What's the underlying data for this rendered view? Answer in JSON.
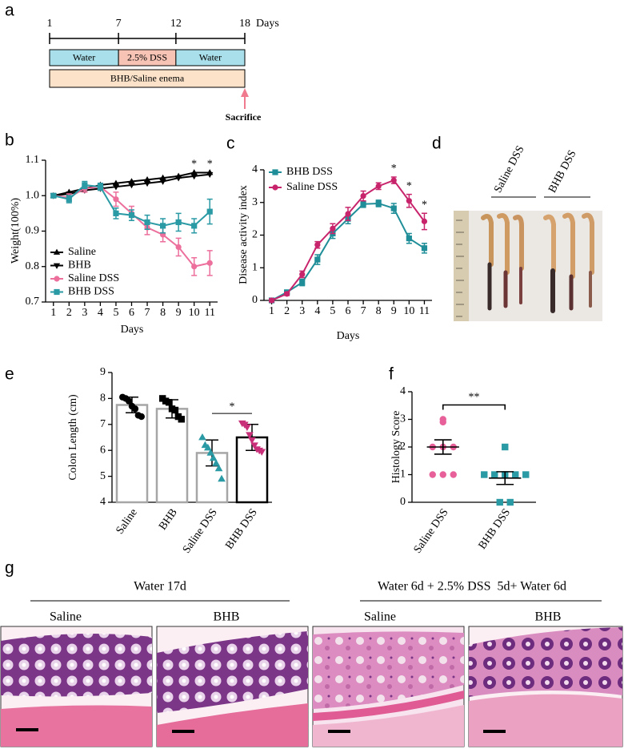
{
  "panel_labels": [
    "a",
    "b",
    "c",
    "d",
    "e",
    "f",
    "g"
  ],
  "timeline": {
    "days": [
      1,
      7,
      12,
      18
    ],
    "unit": "Days",
    "phases": [
      {
        "label": "Water",
        "from": 1,
        "to": 7,
        "color": "#a9dfea"
      },
      {
        "label": "2.5% DSS",
        "from": 7,
        "to": 12,
        "color": "#f6c3b5"
      },
      {
        "label": "Water",
        "from": 12,
        "to": 18,
        "color": "#a9dfea"
      }
    ],
    "treatment": {
      "label": "BHB/Saline enema",
      "color": "#fbe2c9"
    },
    "endpoint": {
      "label": "Sacrifice",
      "color": "#f07b8f"
    }
  },
  "chart_data": [
    {
      "type": "line",
      "ylabel": "Weight(100%)",
      "xlabel": "Days",
      "x": [
        1,
        2,
        3,
        4,
        5,
        6,
        7,
        8,
        9,
        10,
        11
      ],
      "xlim": [
        0.5,
        11.5
      ],
      "xticks": [
        1,
        2,
        3,
        4,
        5,
        6,
        7,
        8,
        9,
        10,
        11
      ],
      "ylim": [
        0.7,
        1.1
      ],
      "yticks": [
        0.7,
        0.8,
        0.9,
        {
          "value": 1,
          "label": "1.0"
        },
        1.1
      ],
      "legend": "lower left",
      "series": [
        {
          "name": "Saline",
          "color": "#000000",
          "marker": "triangle-up",
          "values": [
            1.0,
            1.01,
            1.02,
            1.03,
            1.035,
            1.04,
            1.045,
            1.05,
            1.055,
            1.065,
            1.065
          ]
        },
        {
          "name": "BHB",
          "color": "#000000",
          "marker": "triangle-down",
          "values": [
            1.0,
            1.005,
            1.015,
            1.02,
            1.025,
            1.03,
            1.035,
            1.04,
            1.05,
            1.055,
            1.06
          ]
        },
        {
          "name": "Saline DSS",
          "color": "#ec6f9c",
          "marker": "circle",
          "values": [
            1.0,
            0.995,
            1.02,
            1.025,
            0.99,
            0.95,
            0.91,
            0.89,
            0.855,
            0.8,
            0.81
          ],
          "errors": [
            0.005,
            0.01,
            0.01,
            0.01,
            0.02,
            0.02,
            0.02,
            0.02,
            0.025,
            0.025,
            0.035
          ]
        },
        {
          "name": "BHB DSS",
          "color": "#2a9aa5",
          "marker": "square",
          "values": [
            1.0,
            0.99,
            1.03,
            1.025,
            0.95,
            0.945,
            0.925,
            0.915,
            0.925,
            0.915,
            0.955
          ],
          "errors": [
            0.005,
            0.01,
            0.01,
            0.01,
            0.015,
            0.015,
            0.02,
            0.02,
            0.025,
            0.02,
            0.035
          ]
        }
      ],
      "significance": [
        {
          "x": 10,
          "text": "*"
        },
        {
          "x": 11,
          "text": "*"
        }
      ]
    },
    {
      "type": "line",
      "ylabel": "Disease activity index",
      "xlabel": "Days",
      "x": [
        1,
        2,
        3,
        4,
        5,
        6,
        7,
        8,
        9,
        10,
        11
      ],
      "xlim": [
        0.5,
        11.5
      ],
      "xticks": [
        1,
        2,
        3,
        4,
        5,
        6,
        7,
        8,
        9,
        10,
        11
      ],
      "ylim": [
        0,
        4
      ],
      "yticks": [
        0,
        1,
        2,
        3,
        4
      ],
      "legend": "upper left",
      "series": [
        {
          "name": "BHB DSS",
          "color": "#1f8e98",
          "marker": "square",
          "values": [
            0,
            0.25,
            0.55,
            1.25,
            2.05,
            2.5,
            2.95,
            2.97,
            2.82,
            1.9,
            1.6
          ],
          "errors": [
            0.05,
            0.05,
            0.1,
            0.15,
            0.15,
            0.15,
            0.1,
            0.1,
            0.15,
            0.15,
            0.15
          ]
        },
        {
          "name": "Saline DSS",
          "color": "#c8246c",
          "marker": "circle",
          "values": [
            0,
            0.2,
            0.8,
            1.7,
            2.2,
            2.65,
            3.2,
            3.5,
            3.68,
            3.05,
            2.42
          ],
          "errors": [
            0.05,
            0.05,
            0.1,
            0.1,
            0.15,
            0.2,
            0.15,
            0.1,
            0.1,
            0.2,
            0.25
          ]
        }
      ],
      "significance": [
        {
          "x": 9,
          "text": "*"
        },
        {
          "x": 10,
          "text": "*"
        },
        {
          "x": 11,
          "text": "*"
        }
      ]
    },
    {
      "type": "bar",
      "ylabel": "Colon Length (cm)",
      "categories": [
        "Saline",
        "BHB",
        "Saline DSS",
        "BHB DSS"
      ],
      "values": [
        7.75,
        7.6,
        5.9,
        6.5
      ],
      "errors": [
        0.3,
        0.35,
        0.5,
        0.5
      ],
      "points": [
        [
          8.05,
          8.0,
          7.9,
          7.7,
          7.6,
          7.35,
          7.3
        ],
        [
          8.0,
          7.9,
          7.85,
          7.6,
          7.55,
          7.3,
          7.2
        ],
        [
          6.5,
          6.2,
          6.1,
          5.9,
          5.7,
          5.5,
          5.3,
          4.9
        ],
        [
          7.05,
          7.0,
          6.9,
          6.6,
          6.4,
          6.2,
          6.05,
          6.0,
          5.95
        ]
      ],
      "bar_colors": [
        "#a6a6a6",
        "#a6a6a6",
        "#a6a6a6",
        "#000000"
      ],
      "point_colors": [
        "#000000",
        "#000000",
        "#2a9aa5",
        "#c8307a"
      ],
      "point_markers": [
        "circle",
        "square",
        "triangle-up",
        "triangle-down"
      ],
      "ylim": [
        4,
        9
      ],
      "yticks": [
        4,
        5,
        6,
        7,
        8,
        9
      ],
      "comparisons": [
        {
          "groups": [
            "Saline DSS",
            "BHB DSS"
          ],
          "text": "*"
        }
      ]
    },
    {
      "type": "scatter",
      "ylabel": "Histology Score",
      "categories": [
        "Saline DSS",
        "BHB DSS"
      ],
      "values": [
        2.0,
        0.875
      ],
      "errors": [
        0.26,
        0.23
      ],
      "points": [
        [
          3,
          2.9,
          2,
          2,
          2,
          1,
          1,
          1
        ],
        [
          2,
          1,
          1,
          1,
          1,
          1,
          0,
          0
        ]
      ],
      "point_colors": [
        "#e8609a",
        "#2a9aa5"
      ],
      "point_markers": [
        "circle",
        "square"
      ],
      "ylim": [
        0,
        4
      ],
      "yticks": [
        0,
        1,
        2,
        3,
        4
      ],
      "comparisons": [
        {
          "groups": [
            "Saline DSS",
            "BHB DSS"
          ],
          "text": "**"
        }
      ]
    }
  ],
  "photo": {
    "labels": [
      "Saline DSS",
      "BHB DSS"
    ]
  },
  "histology": {
    "groups": [
      {
        "title": "Water 17d",
        "images": [
          "Saline",
          "BHB"
        ]
      },
      {
        "title": "Water 6d + 2.5% DSS  5d+ Water 6d",
        "images": [
          "Saline",
          "BHB"
        ]
      }
    ]
  }
}
